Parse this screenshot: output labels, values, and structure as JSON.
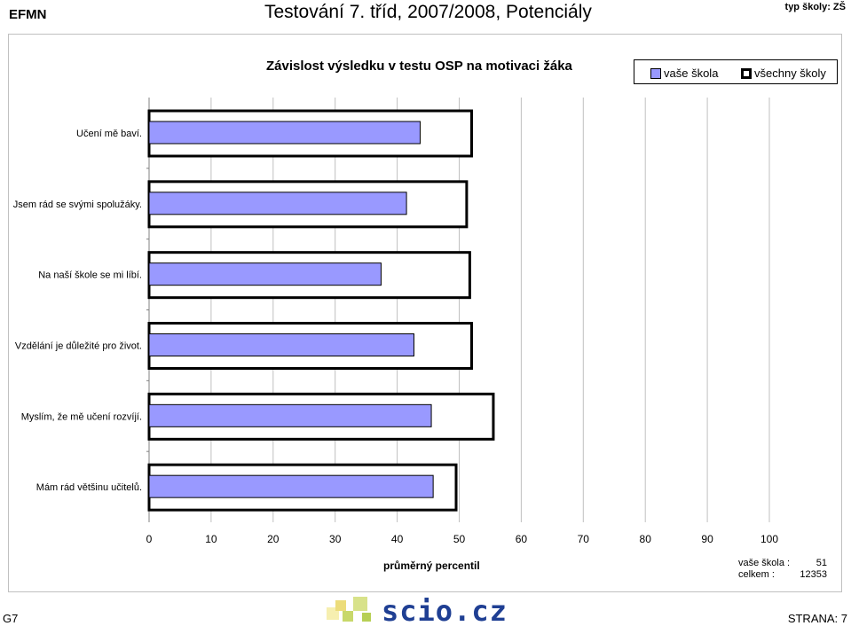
{
  "header": {
    "left": "EFMN",
    "title": "Testování 7. tříd, 2007/2008, Potenciály",
    "right": "typ školy: ZŠ"
  },
  "legend": {
    "school": "vaše škola",
    "all": "všechny školy"
  },
  "stats": {
    "school_label": "vaše škola :",
    "school_value": "51",
    "total_label": "celkem :",
    "total_value": "12353"
  },
  "footer": {
    "left": "G7",
    "right": "STRANA: 7",
    "logo": "scio.cz"
  },
  "colors": {
    "school_bar": "#9999ff",
    "all_bar": "#ffffff"
  },
  "chart_data": {
    "type": "bar",
    "orientation": "horizontal",
    "title": "Závislost výsledku v testu OSP na motivaci žáka",
    "xlabel": "průměrný percentil",
    "xlim": [
      0,
      100
    ],
    "xticks": [
      0,
      10,
      20,
      30,
      40,
      50,
      60,
      70,
      80,
      90,
      100
    ],
    "grid": true,
    "legend_position": "top-right",
    "categories": [
      "Učení mě baví.",
      "Jsem rád se svými spolužáky.",
      "Na naší škole se mi líbí.",
      "Vzdělání je důležité pro život.",
      "Myslím, že mě učení rozvíjí.",
      "Mám rád většinu učitelů."
    ],
    "series": [
      {
        "name": "vaše škola",
        "values": [
          43.7,
          41.5,
          37.4,
          42.7,
          45.5,
          45.8
        ]
      },
      {
        "name": "všechny školy",
        "values": [
          52,
          51.2,
          51.7,
          52,
          55.5,
          49.5
        ]
      }
    ]
  }
}
